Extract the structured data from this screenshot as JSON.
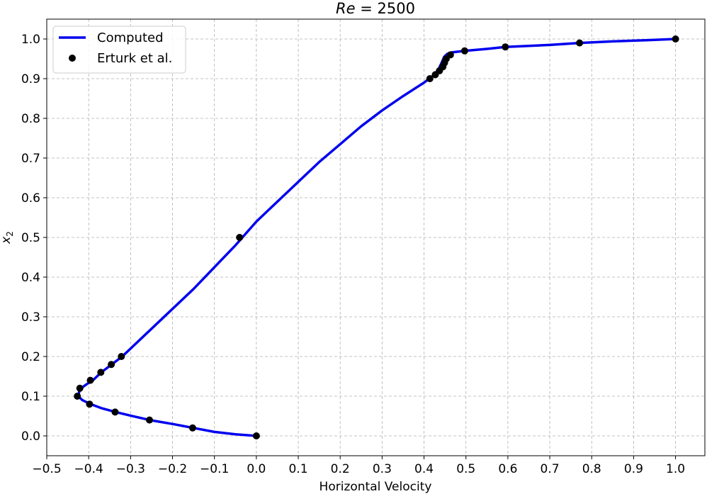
{
  "chart_data": {
    "type": "line",
    "title_main": "Re",
    "title_rest": " = 2500",
    "xlabel": "Horizontal Velocity",
    "ylabel_main": "x",
    "ylabel_sub": "2",
    "xlim": [
      -0.5,
      1.07
    ],
    "ylim": [
      -0.05,
      1.05
    ],
    "xticks": [
      -0.5,
      -0.4,
      -0.3,
      -0.2,
      -0.1,
      0.0,
      0.1,
      0.2,
      0.3,
      0.4,
      0.5,
      0.6,
      0.7,
      0.8,
      0.9,
      1.0
    ],
    "xtick_labels": [
      "−0.5",
      "−0.4",
      "−0.3",
      "−0.2",
      "−0.1",
      "0.0",
      "0.1",
      "0.2",
      "0.3",
      "0.4",
      "0.5",
      "0.6",
      "0.7",
      "0.8",
      "0.9",
      "1.0"
    ],
    "yticks": [
      0.0,
      0.1,
      0.2,
      0.3,
      0.4,
      0.5,
      0.6,
      0.7,
      0.8,
      0.9,
      1.0
    ],
    "ytick_labels": [
      "0.0",
      "0.1",
      "0.2",
      "0.3",
      "0.4",
      "0.5",
      "0.6",
      "0.7",
      "0.8",
      "0.9",
      "1.0"
    ],
    "grid": true,
    "legend_position": "top-left",
    "series": [
      {
        "name": "Computed",
        "kind": "line",
        "color": "#0000ee",
        "points": [
          [
            0.0,
            0.0
          ],
          [
            -0.05,
            0.004
          ],
          [
            -0.1,
            0.01
          ],
          [
            -0.15,
            0.02
          ],
          [
            -0.2,
            0.03
          ],
          [
            -0.255,
            0.04
          ],
          [
            -0.3,
            0.051
          ],
          [
            -0.335,
            0.06
          ],
          [
            -0.37,
            0.07
          ],
          [
            -0.395,
            0.08
          ],
          [
            -0.415,
            0.09
          ],
          [
            -0.425,
            0.1
          ],
          [
            -0.423,
            0.11
          ],
          [
            -0.418,
            0.12
          ],
          [
            -0.405,
            0.13
          ],
          [
            -0.39,
            0.14
          ],
          [
            -0.37,
            0.16
          ],
          [
            -0.345,
            0.18
          ],
          [
            -0.32,
            0.2
          ],
          [
            -0.25,
            0.27
          ],
          [
            -0.15,
            0.37
          ],
          [
            -0.05,
            0.48
          ],
          [
            0.0,
            0.54
          ],
          [
            0.05,
            0.59
          ],
          [
            0.1,
            0.64
          ],
          [
            0.15,
            0.69
          ],
          [
            0.2,
            0.735
          ],
          [
            0.25,
            0.78
          ],
          [
            0.3,
            0.82
          ],
          [
            0.35,
            0.856
          ],
          [
            0.4,
            0.89
          ],
          [
            0.425,
            0.91
          ],
          [
            0.435,
            0.925
          ],
          [
            0.442,
            0.94
          ],
          [
            0.448,
            0.955
          ],
          [
            0.455,
            0.962
          ],
          [
            0.465,
            0.966
          ],
          [
            0.497,
            0.97
          ],
          [
            0.55,
            0.975
          ],
          [
            0.594,
            0.98
          ],
          [
            0.7,
            0.985
          ],
          [
            0.771,
            0.99
          ],
          [
            0.85,
            0.994
          ],
          [
            0.93,
            0.997
          ],
          [
            1.0,
            1.0
          ]
        ]
      },
      {
        "name": "Erturk et al.",
        "kind": "scatter",
        "color": "#000000",
        "points": [
          [
            0.0,
            0.0
          ],
          [
            -0.152,
            0.02
          ],
          [
            -0.255,
            0.04
          ],
          [
            -0.337,
            0.06
          ],
          [
            -0.398,
            0.08
          ],
          [
            -0.427,
            0.1
          ],
          [
            -0.421,
            0.12
          ],
          [
            -0.396,
            0.14
          ],
          [
            -0.371,
            0.16
          ],
          [
            -0.346,
            0.18
          ],
          [
            -0.322,
            0.2
          ],
          [
            -0.04,
            0.5
          ],
          [
            0.414,
            0.9
          ],
          [
            0.427,
            0.91
          ],
          [
            0.437,
            0.92
          ],
          [
            0.445,
            0.93
          ],
          [
            0.449,
            0.94
          ],
          [
            0.453,
            0.95
          ],
          [
            0.463,
            0.96
          ],
          [
            0.497,
            0.97
          ],
          [
            0.594,
            0.98
          ],
          [
            0.771,
            0.99
          ],
          [
            1.0,
            1.0
          ]
        ]
      }
    ]
  }
}
